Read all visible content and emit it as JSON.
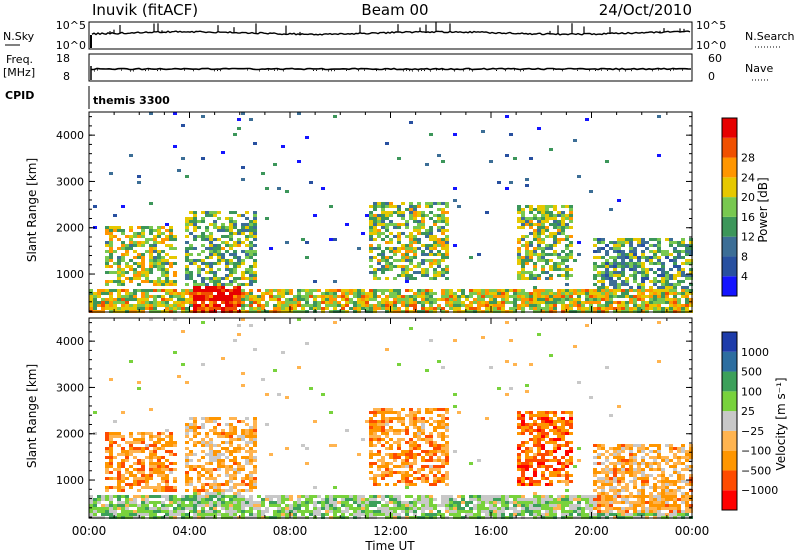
{
  "header": {
    "station": "Inuvik (fitACF)",
    "beam": "Beam 00",
    "date": "24/Oct/2010"
  },
  "panels": {
    "nsky": {
      "left_label": "N.Sky",
      "left_ticks": [
        "10^5",
        "10^0"
      ],
      "right_label": "N.Search",
      "right_ticks": [
        "10^5",
        "10^0"
      ]
    },
    "freq": {
      "left_label_1": "Freq.",
      "left_label_2": "[MHz]",
      "left_ticks": [
        "18",
        "8"
      ],
      "right_label": "Nave",
      "right_ticks": [
        "60",
        "0"
      ]
    },
    "cpid": {
      "label": "CPID",
      "value": "themis 3300"
    }
  },
  "colors": {
    "power_scale": [
      "#1414ff",
      "#2850a0",
      "#3c6e96",
      "#3c965a",
      "#78c850",
      "#e6c800",
      "#ff9600",
      "#f05000",
      "#e60000"
    ],
    "velocity_scale": [
      "#ff0000",
      "#ff4b00",
      "#ff9600",
      "#ffb450",
      "#c8c8c8",
      "#78d23c",
      "#3ca05a",
      "#2d6ea0",
      "#1e3caa"
    ],
    "line": "#000000"
  },
  "chart_data": [
    {
      "type": "heatmap",
      "panel": "power",
      "ylabel": "Slant Range [km]",
      "yticks": [
        1000,
        2000,
        3000,
        4000
      ],
      "ylim": [
        180,
        4500
      ],
      "xlim_hours": [
        0,
        24
      ],
      "colorbar": {
        "label": "Power [dB]",
        "ticks": [
          "4",
          "8",
          "12",
          "16",
          "20",
          "24",
          "28"
        ],
        "range": [
          0,
          32
        ]
      },
      "echo_regions": [
        {
          "t": [
            0.5,
            3.5
          ],
          "r": [
            800,
            2100
          ],
          "level": 0.55
        },
        {
          "t": [
            3.8,
            6.6
          ],
          "r": [
            800,
            2400
          ],
          "level": 0.45
        },
        {
          "t": [
            0.0,
            24.0
          ],
          "r": [
            180,
            700
          ],
          "level": 0.6
        },
        {
          "t": [
            4.0,
            6.0
          ],
          "r": [
            180,
            800
          ],
          "level": 0.95
        },
        {
          "t": [
            11.0,
            14.2
          ],
          "r": [
            900,
            2600
          ],
          "level": 0.5
        },
        {
          "t": [
            17.0,
            19.2
          ],
          "r": [
            900,
            2500
          ],
          "level": 0.5
        },
        {
          "t": [
            20.0,
            24.0
          ],
          "r": [
            300,
            1800
          ],
          "level": 0.4
        }
      ]
    },
    {
      "type": "heatmap",
      "panel": "velocity",
      "ylabel": "Slant Range [km]",
      "yticks": [
        1000,
        2000,
        3000,
        4000
      ],
      "ylim": [
        180,
        4500
      ],
      "xlim_hours": [
        0,
        24
      ],
      "xlabel": "Time UT",
      "xticks": [
        "00:00",
        "04:00",
        "08:00",
        "12:00",
        "16:00",
        "20:00",
        "00:00"
      ],
      "colorbar": {
        "label": "Velocity [m s⁻¹]",
        "ticks": [
          "1000",
          "500",
          "100",
          "25",
          "−25",
          "−100",
          "−500",
          "−1000"
        ]
      },
      "echo_regions": [
        {
          "t": [
            0.5,
            3.5
          ],
          "r": [
            800,
            2100
          ],
          "level": -0.4
        },
        {
          "t": [
            3.8,
            6.6
          ],
          "r": [
            800,
            2400
          ],
          "level": -0.3
        },
        {
          "t": [
            0.0,
            24.0
          ],
          "r": [
            180,
            700
          ],
          "level": 0.15
        },
        {
          "t": [
            11.0,
            14.2
          ],
          "r": [
            900,
            2600
          ],
          "level": -0.4
        },
        {
          "t": [
            17.0,
            19.2
          ],
          "r": [
            900,
            2500
          ],
          "level": -0.6
        },
        {
          "t": [
            20.0,
            24.0
          ],
          "r": [
            300,
            1800
          ],
          "level": -0.3
        }
      ]
    }
  ]
}
